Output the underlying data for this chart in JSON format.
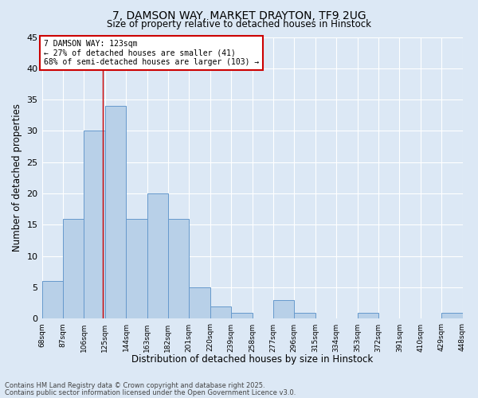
{
  "title1": "7, DAMSON WAY, MARKET DRAYTON, TF9 2UG",
  "title2": "Size of property relative to detached houses in Hinstock",
  "xlabel": "Distribution of detached houses by size in Hinstock",
  "ylabel": "Number of detached properties",
  "bar_color": "#b8d0e8",
  "bar_edge_color": "#6699cc",
  "background_color": "#dce8f5",
  "grid_color": "#ffffff",
  "bin_edges": [
    68,
    87,
    106,
    125,
    144,
    163,
    182,
    201,
    220,
    239,
    258,
    277,
    296,
    315,
    334,
    353,
    372,
    391,
    410,
    429,
    448
  ],
  "counts": [
    6,
    16,
    30,
    34,
    16,
    20,
    16,
    5,
    2,
    1,
    0,
    3,
    1,
    0,
    0,
    1,
    0,
    0,
    0,
    1
  ],
  "tick_labels": [
    "68sqm",
    "87sqm",
    "106sqm",
    "125sqm",
    "144sqm",
    "163sqm",
    "182sqm",
    "201sqm",
    "220sqm",
    "239sqm",
    "258sqm",
    "277sqm",
    "296sqm",
    "315sqm",
    "334sqm",
    "353sqm",
    "372sqm",
    "391sqm",
    "410sqm",
    "429sqm",
    "448sqm"
  ],
  "property_size": 123,
  "property_line_color": "#cc0000",
  "annotation_text": "7 DAMSON WAY: 123sqm\n← 27% of detached houses are smaller (41)\n68% of semi-detached houses are larger (103) →",
  "annotation_box_color": "#ffffff",
  "annotation_box_edge": "#cc0000",
  "ylim": [
    0,
    45
  ],
  "yticks": [
    0,
    5,
    10,
    15,
    20,
    25,
    30,
    35,
    40,
    45
  ],
  "footer1": "Contains HM Land Registry data © Crown copyright and database right 2025.",
  "footer2": "Contains public sector information licensed under the Open Government Licence v3.0."
}
